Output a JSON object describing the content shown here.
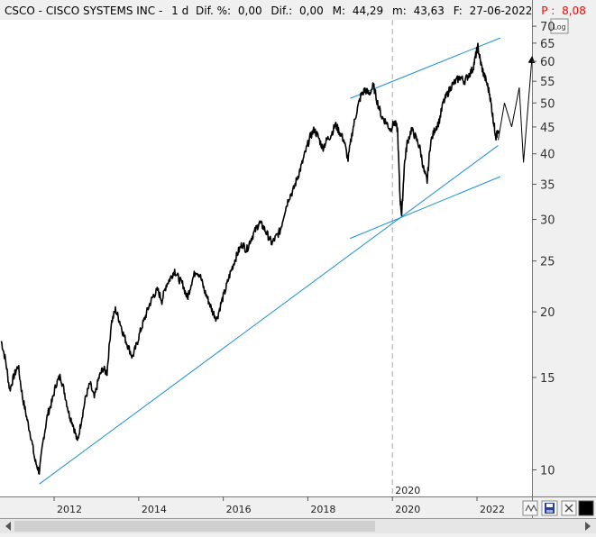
{
  "header": {
    "symbol": "CSCO",
    "company": "CISCO SYSTEMS INC",
    "period": "1 d",
    "dif_pct_label": "Dif. %:",
    "dif_pct": "0,00",
    "dif_label": "Dif.:",
    "dif": "0,00",
    "max_label": "M:",
    "max": "44,29",
    "min_label": "m:",
    "min": "43,63",
    "date_label": "F:",
    "date": "27-06-2022",
    "p_label": "P :",
    "p_value": "8,08",
    "p_color": "#ff0000"
  },
  "log_button": "Log",
  "marker_label": "2020",
  "bottom_controls": {
    "wave_icon": "wave-icon",
    "save_icon": "save-icon",
    "close_icon": "close-icon",
    "color_swatch": "#000000"
  },
  "chart_data": {
    "type": "line",
    "title": "",
    "xlabel": "",
    "ylabel": "",
    "yscale": "log",
    "ylim": [
      8.9,
      72
    ],
    "xlim": [
      2010.72,
      2023.3
    ],
    "y_ticks": [
      10,
      15,
      20,
      25,
      30,
      35,
      40,
      45,
      50,
      55,
      60,
      65,
      70
    ],
    "x_ticks": [
      2012,
      2014,
      2016,
      2018,
      2020,
      2022
    ],
    "grid": false,
    "price_color": "#000000",
    "trendline_color": "#1a8fd6",
    "series": [
      {
        "values": [
          [
            2010.75,
            17.6
          ],
          [
            2010.85,
            16.2
          ],
          [
            2010.95,
            14.2
          ],
          [
            2011.05,
            15.1
          ],
          [
            2011.15,
            15.8
          ],
          [
            2011.25,
            13.8
          ],
          [
            2011.35,
            12.6
          ],
          [
            2011.45,
            11.6
          ],
          [
            2011.55,
            10.4
          ],
          [
            2011.65,
            9.9
          ],
          [
            2011.75,
            11.5
          ],
          [
            2011.85,
            12.8
          ],
          [
            2011.95,
            13.5
          ],
          [
            2012.05,
            14.6
          ],
          [
            2012.15,
            15.1
          ],
          [
            2012.25,
            14.0
          ],
          [
            2012.35,
            12.8
          ],
          [
            2012.45,
            12.2
          ],
          [
            2012.55,
            11.3
          ],
          [
            2012.65,
            12.5
          ],
          [
            2012.75,
            13.8
          ],
          [
            2012.85,
            14.6
          ],
          [
            2012.95,
            13.7
          ],
          [
            2013.05,
            14.9
          ],
          [
            2013.15,
            15.6
          ],
          [
            2013.25,
            15.3
          ],
          [
            2013.35,
            19.0
          ],
          [
            2013.45,
            20.2
          ],
          [
            2013.55,
            19.2
          ],
          [
            2013.65,
            18.0
          ],
          [
            2013.75,
            17.2
          ],
          [
            2013.85,
            16.4
          ],
          [
            2013.95,
            17.3
          ],
          [
            2014.05,
            18.5
          ],
          [
            2014.15,
            19.5
          ],
          [
            2014.25,
            20.6
          ],
          [
            2014.35,
            21.5
          ],
          [
            2014.45,
            22.0
          ],
          [
            2014.55,
            21.0
          ],
          [
            2014.65,
            22.5
          ],
          [
            2014.75,
            23.2
          ],
          [
            2014.85,
            24.0
          ],
          [
            2014.95,
            23.1
          ],
          [
            2015.05,
            22.5
          ],
          [
            2015.15,
            21.2
          ],
          [
            2015.25,
            22.8
          ],
          [
            2015.35,
            24.0
          ],
          [
            2015.45,
            23.5
          ],
          [
            2015.55,
            22.0
          ],
          [
            2015.65,
            21.0
          ],
          [
            2015.75,
            20.0
          ],
          [
            2015.85,
            19.4
          ],
          [
            2015.95,
            20.8
          ],
          [
            2016.05,
            22.0
          ],
          [
            2016.15,
            23.5
          ],
          [
            2016.25,
            24.8
          ],
          [
            2016.35,
            26.0
          ],
          [
            2016.45,
            27.0
          ],
          [
            2016.55,
            26.2
          ],
          [
            2016.65,
            27.5
          ],
          [
            2016.75,
            28.5
          ],
          [
            2016.85,
            29.6
          ],
          [
            2016.95,
            29.0
          ],
          [
            2017.05,
            28.0
          ],
          [
            2017.15,
            27.0
          ],
          [
            2017.25,
            27.8
          ],
          [
            2017.35,
            28.6
          ],
          [
            2017.45,
            31.0
          ],
          [
            2017.55,
            33.0
          ],
          [
            2017.65,
            34.0
          ],
          [
            2017.75,
            36.0
          ],
          [
            2017.85,
            38.0
          ],
          [
            2017.95,
            40.5
          ],
          [
            2018.05,
            43.0
          ],
          [
            2018.15,
            44.5
          ],
          [
            2018.25,
            43.0
          ],
          [
            2018.35,
            41.0
          ],
          [
            2018.45,
            42.5
          ],
          [
            2018.55,
            43.5
          ],
          [
            2018.65,
            45.5
          ],
          [
            2018.75,
            44.0
          ],
          [
            2018.85,
            42.5
          ],
          [
            2018.95,
            39.0
          ],
          [
            2019.05,
            44.0
          ],
          [
            2019.15,
            48.0
          ],
          [
            2019.25,
            51.5
          ],
          [
            2019.35,
            53.0
          ],
          [
            2019.45,
            52.0
          ],
          [
            2019.55,
            54.0
          ],
          [
            2019.65,
            50.0
          ],
          [
            2019.75,
            47.0
          ],
          [
            2019.85,
            46.0
          ],
          [
            2019.95,
            44.5
          ],
          [
            2020.05,
            46.0
          ],
          [
            2020.12,
            44.5
          ],
          [
            2020.18,
            33.0
          ],
          [
            2020.22,
            30.5
          ],
          [
            2020.28,
            38.0
          ],
          [
            2020.35,
            42.0
          ],
          [
            2020.45,
            44.5
          ],
          [
            2020.55,
            43.0
          ],
          [
            2020.65,
            41.0
          ],
          [
            2020.75,
            37.0
          ],
          [
            2020.82,
            35.5
          ],
          [
            2020.9,
            42.0
          ],
          [
            2021.0,
            44.5
          ],
          [
            2021.1,
            46.0
          ],
          [
            2021.2,
            50.0
          ],
          [
            2021.3,
            52.0
          ],
          [
            2021.4,
            54.0
          ],
          [
            2021.5,
            55.0
          ],
          [
            2021.6,
            56.0
          ],
          [
            2021.7,
            55.0
          ],
          [
            2021.8,
            56.5
          ],
          [
            2021.9,
            58.0
          ],
          [
            2021.97,
            61.5
          ],
          [
            2022.02,
            64.0
          ],
          [
            2022.08,
            60.0
          ],
          [
            2022.15,
            57.0
          ],
          [
            2022.22,
            55.0
          ],
          [
            2022.3,
            52.0
          ],
          [
            2022.36,
            48.0
          ],
          [
            2022.41,
            45.0
          ],
          [
            2022.45,
            43.0
          ],
          [
            2022.49,
            44.0
          ]
        ]
      }
    ],
    "trendlines": [
      {
        "from": [
          2011.65,
          9.4
        ],
        "to": [
          2022.5,
          41.5
        ]
      },
      {
        "from": [
          2019.0,
          27.6
        ],
        "to": [
          2022.55,
          36.2
        ]
      },
      {
        "from": [
          2019.0,
          51.0
        ],
        "to": [
          2022.55,
          66.5
        ]
      }
    ],
    "projection": [
      [
        2022.5,
        42.5
      ],
      [
        2022.65,
        50.0
      ],
      [
        2022.82,
        45.0
      ],
      [
        2023.0,
        53.5
      ],
      [
        2023.1,
        38.5
      ],
      [
        2023.3,
        61.0
      ]
    ]
  }
}
